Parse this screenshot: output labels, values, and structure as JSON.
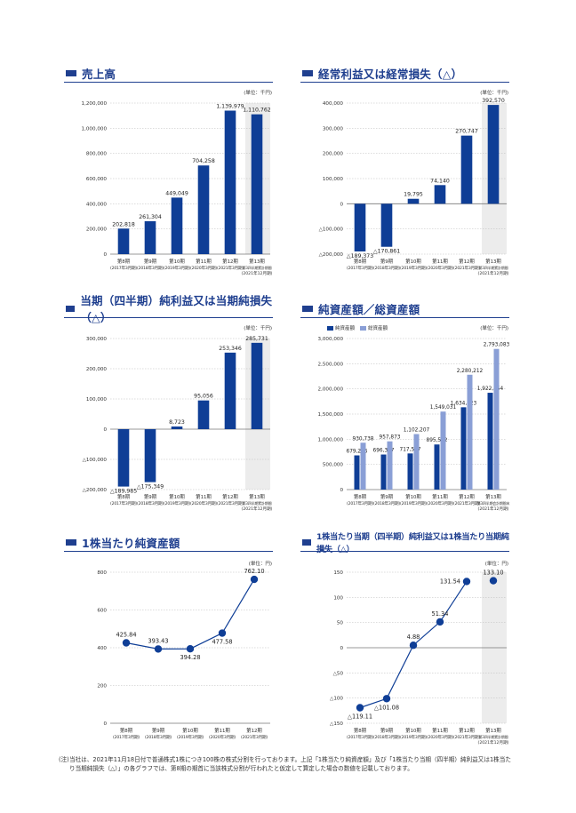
{
  "colors": {
    "bar": "#0f3e96",
    "bar_light": "#8a9fd6",
    "title": "#1f3f8f",
    "shade": "#ececec",
    "grid": "#bbbbbb"
  },
  "chart_data": [
    {
      "id": "sales",
      "type": "bar",
      "title": "売上高",
      "unit": "(単位：千円)",
      "categories": [
        {
          "l1": "第8期",
          "l2": "(2017年3月期)"
        },
        {
          "l1": "第9期",
          "l2": "(2018年3月期)"
        },
        {
          "l1": "第10期",
          "l2": "(2019年3月期)"
        },
        {
          "l1": "第11期",
          "l2": "(2020年3月期)"
        },
        {
          "l1": "第12期",
          "l2": "(2021年3月期)"
        },
        {
          "l1": "第13期",
          "l2": "第3四半期累計期間",
          "l3": "(2021年12月期)"
        }
      ],
      "values": [
        202818,
        261304,
        449049,
        704258,
        1139979,
        1110762
      ],
      "labels": [
        "202,818",
        "261,304",
        "449,049",
        "704,258",
        "1,139,979",
        "1,110,762"
      ],
      "yticks": [
        0,
        200000,
        400000,
        600000,
        800000,
        1000000,
        1200000
      ],
      "ytick_labels": [
        "0",
        "200,000",
        "400,000",
        "600,000",
        "800,000",
        "1,000,000",
        "1,200,000"
      ],
      "ylim": [
        0,
        1200000
      ],
      "shaded_index": 5
    },
    {
      "id": "ordinary",
      "type": "bar",
      "title": "経常利益又は経常損失（△）",
      "unit": "(単位：千円)",
      "categories": [
        {
          "l1": "第8期",
          "l2": "(2017年3月期)"
        },
        {
          "l1": "第9期",
          "l2": "(2018年3月期)"
        },
        {
          "l1": "第10期",
          "l2": "(2019年3月期)"
        },
        {
          "l1": "第11期",
          "l2": "(2020年3月期)"
        },
        {
          "l1": "第12期",
          "l2": "(2021年3月期)"
        },
        {
          "l1": "第13期",
          "l2": "第3四半期累計期間",
          "l3": "(2021年12月期)"
        }
      ],
      "values": [
        -189373,
        -170861,
        19795,
        74140,
        270747,
        392570
      ],
      "labels": [
        "△189,373",
        "△170,861",
        "19,795",
        "74,140",
        "270,747",
        "392,570"
      ],
      "yticks": [
        -200000,
        -100000,
        0,
        100000,
        200000,
        300000,
        400000
      ],
      "ytick_labels": [
        "△200,000",
        "△100,000",
        "0",
        "100,000",
        "200,000",
        "300,000",
        "400,000"
      ],
      "ylim": [
        -200000,
        400000
      ],
      "shaded_index": 5
    },
    {
      "id": "netincome",
      "type": "bar",
      "title": "当期（四半期）純利益又は当期純損失（△）",
      "unit": "(単位：千円)",
      "categories": [
        {
          "l1": "第8期",
          "l2": "(2017年3月期)"
        },
        {
          "l1": "第9期",
          "l2": "(2018年3月期)"
        },
        {
          "l1": "第10期",
          "l2": "(2019年3月期)"
        },
        {
          "l1": "第11期",
          "l2": "(2020年3月期)"
        },
        {
          "l1": "第12期",
          "l2": "(2021年3月期)"
        },
        {
          "l1": "第13期",
          "l2": "第3四半期累計期間",
          "l3": "(2021年12月期)"
        }
      ],
      "values": [
        -189985,
        -175349,
        8723,
        95056,
        253346,
        285731
      ],
      "labels": [
        "△189,985",
        "△175,349",
        "8,723",
        "95,056",
        "253,346",
        "285,731"
      ],
      "yticks": [
        -200000,
        -100000,
        0,
        100000,
        200000,
        300000
      ],
      "ytick_labels": [
        "△200,000",
        "△100,000",
        "0",
        "100,000",
        "200,000",
        "300,000"
      ],
      "ylim": [
        -200000,
        300000
      ],
      "shaded_index": 5
    },
    {
      "id": "assets",
      "type": "bar",
      "title": "純資産額／総資産額",
      "unit": "(単位：千円)",
      "categories": [
        {
          "l1": "第8期",
          "l2": "(2017年3月期)"
        },
        {
          "l1": "第9期",
          "l2": "(2018年3月期)"
        },
        {
          "l1": "第10期",
          "l2": "(2019年3月期)"
        },
        {
          "l1": "第11期",
          "l2": "(2020年3月期)"
        },
        {
          "l1": "第12期",
          "l2": "(2021年3月期)"
        },
        {
          "l1": "第13期",
          "l2": "第3四半期会計期間末",
          "l3": "(2021年12月期)"
        }
      ],
      "series": [
        {
          "name": "純資産額",
          "values": [
            679226,
            696367,
            717597,
            895592,
            1634723,
            1922554
          ],
          "labels": [
            "679,226",
            "696,367",
            "717,597",
            "895,592",
            "1,634,723",
            "1,922,554"
          ]
        },
        {
          "name": "総資産額",
          "values": [
            930738,
            957873,
            1102207,
            1549031,
            2280212,
            2793083
          ],
          "labels": [
            "930,738",
            "957,873",
            "1,102,207",
            "1,549,031",
            "2,280,212",
            "2,793,083"
          ]
        }
      ],
      "yticks": [
        0,
        500000,
        1000000,
        1500000,
        2000000,
        2500000,
        3000000
      ],
      "ytick_labels": [
        "0",
        "500,000",
        "1,000,000",
        "1,500,000",
        "2,000,000",
        "2,500,000",
        "3,000,000"
      ],
      "ylim": [
        0,
        3000000
      ]
    },
    {
      "id": "bps",
      "type": "line",
      "title": "1株当たり純資産額",
      "unit": "(単位：円)",
      "categories": [
        {
          "l1": "第8期",
          "l2": "(2017年3月期)"
        },
        {
          "l1": "第9期",
          "l2": "(2018年3月期)"
        },
        {
          "l1": "第10期",
          "l2": "(2019年3月期)"
        },
        {
          "l1": "第11期",
          "l2": "(2020年3月期)"
        },
        {
          "l1": "第12期",
          "l2": "(2021年3月期)"
        }
      ],
      "values": [
        425.84,
        393.43,
        394.28,
        477.58,
        762.1
      ],
      "labels": [
        "425.84",
        "393.43",
        "394.28",
        "477.58",
        "762.10"
      ],
      "label_pos": [
        "above",
        "above",
        "below",
        "below",
        "above"
      ],
      "yticks": [
        0,
        200,
        400,
        600,
        800
      ],
      "ytick_labels": [
        "0",
        "200",
        "400",
        "600",
        "800"
      ],
      "ylim": [
        0,
        800
      ]
    },
    {
      "id": "eps",
      "type": "line",
      "title": "1株当たり当期（四半期）純利益又は1株当たり当期純損失（△）",
      "unit": "(単位：円)",
      "categories": [
        {
          "l1": "第8期",
          "l2": "(2017年3月期)"
        },
        {
          "l1": "第9期",
          "l2": "(2018年3月期)"
        },
        {
          "l1": "第10期",
          "l2": "(2019年3月期)"
        },
        {
          "l1": "第11期",
          "l2": "(2020年3月期)"
        },
        {
          "l1": "第12期",
          "l2": "(2021年3月期)"
        },
        {
          "l1": "第13期",
          "l2": "第3四半期累計期間",
          "l3": "(2021年12月期)"
        }
      ],
      "values": [
        -119.11,
        -101.08,
        4.88,
        51.34,
        131.54,
        133.1
      ],
      "labels": [
        "△119.11",
        "△101.08",
        "4.88",
        "51.34",
        "131.54",
        "133.10"
      ],
      "label_pos": [
        "below",
        "below",
        "above",
        "above",
        "left",
        "above"
      ],
      "yticks": [
        -150,
        -100,
        -50,
        0,
        50,
        100,
        150
      ],
      "ytick_labels": [
        "△150",
        "△100",
        "△50",
        "0",
        "50",
        "100",
        "150"
      ],
      "ylim": [
        -150,
        150
      ],
      "shaded_index": 5,
      "connect_until": 4
    }
  ],
  "note": {
    "label": "(注)",
    "text": "当社は、2021年11月18日付で普通株式1株につき100株の株式分割を行っております。上記「1株当たり純資産額」及び「1株当たり当期（四半期）純利益又は1株当たり当期純損失（△）」の各グラフでは、第8期の期首に当該株式分割が行われたと仮定して算定した場合の数値を記載しております。"
  }
}
